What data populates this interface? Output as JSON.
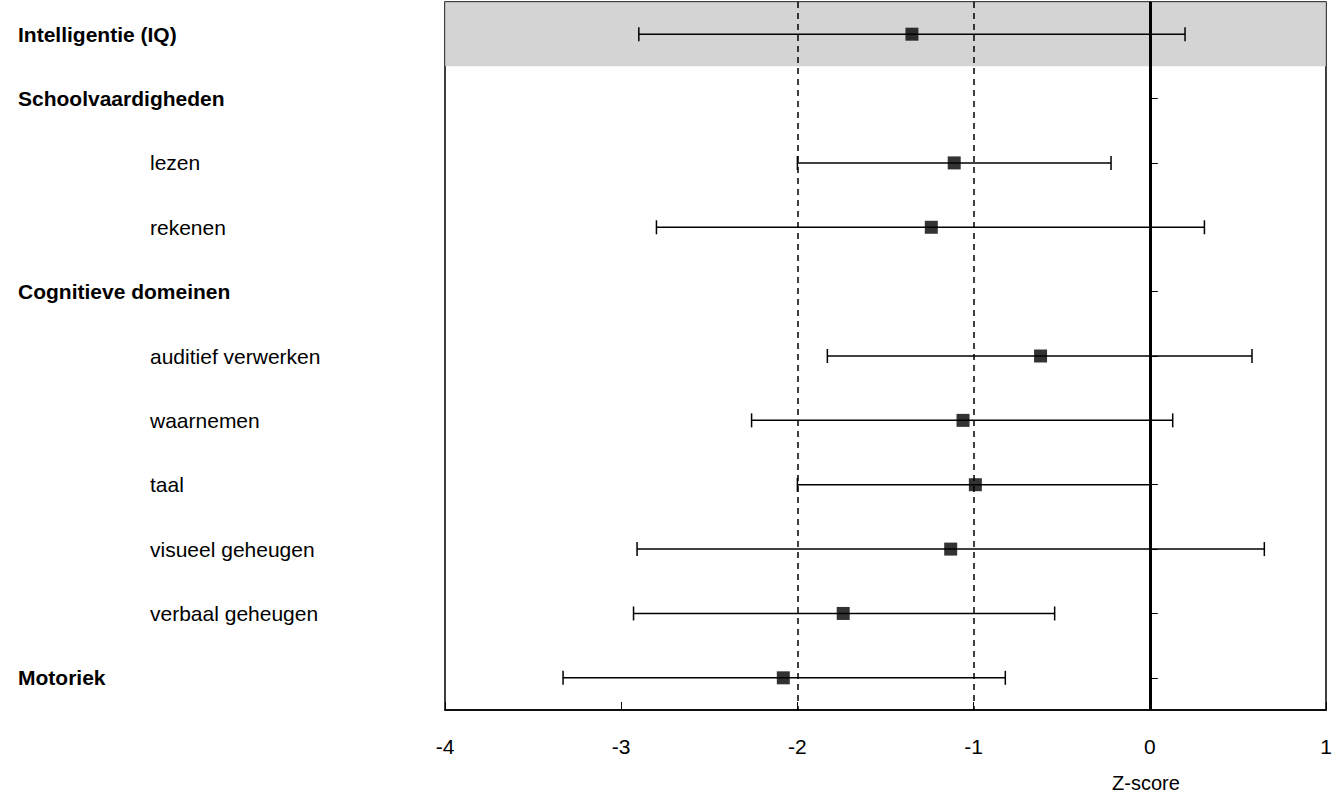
{
  "chart_data": {
    "type": "forest",
    "categories": [
      "Intelligentie (IQ)",
      "Schoolvaardigheden",
      "lezen",
      "rekenen",
      "Cognitieve domeinen",
      "auditief verwerken",
      "waarnemen",
      "taal",
      "visueel geheugen",
      "verbaal geheugen",
      "Motoriek"
    ],
    "subitems": [
      false,
      false,
      true,
      true,
      false,
      true,
      true,
      true,
      true,
      true,
      false
    ],
    "values": [
      -1.35,
      null,
      -1.11,
      -1.24,
      null,
      -0.62,
      -1.06,
      -0.99,
      -1.13,
      -1.74,
      -2.08
    ],
    "lower": [
      -2.9,
      null,
      -2.0,
      -2.8,
      null,
      -1.83,
      -2.26,
      -2.0,
      -2.91,
      -2.93,
      -3.33
    ],
    "upper": [
      0.2,
      null,
      -0.22,
      0.31,
      null,
      0.58,
      0.13,
      0.0,
      0.65,
      -0.54,
      -0.82
    ],
    "x_label": "Z-score",
    "xlim": [
      -4,
      1
    ],
    "xticks": [
      -4,
      -3,
      -2,
      -1,
      0,
      1
    ],
    "reference_lines": [
      {
        "value": -2,
        "line_style": "dashed"
      },
      {
        "value": -1,
        "line_style": "dashed"
      },
      {
        "value": 0,
        "line_style": "solid"
      }
    ],
    "shaded_category": "Intelligentie (IQ)",
    "color": "#000000",
    "marker": "square",
    "grid": false
  }
}
